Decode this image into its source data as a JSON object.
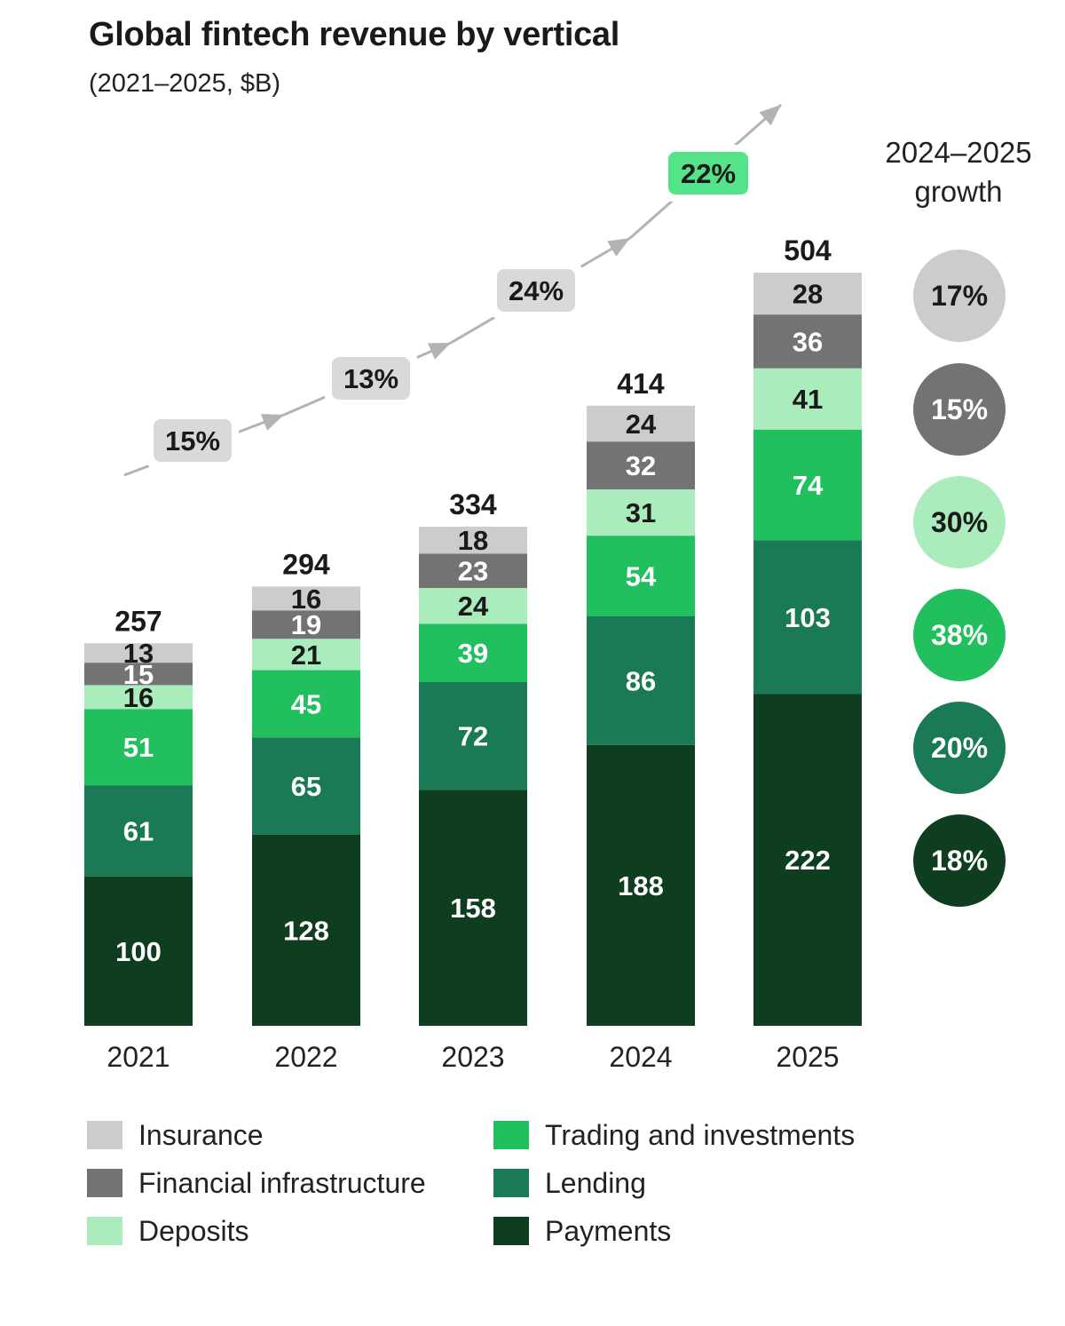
{
  "title": "Global fintech revenue by vertical",
  "subtitle": "(2021–2025, $B)",
  "growth_header": {
    "line1": "2024–2025",
    "line2": "growth"
  },
  "chart_data": {
    "type": "bar",
    "stacked": true,
    "categories": [
      "2021",
      "2022",
      "2023",
      "2024",
      "2025"
    ],
    "totals": [
      257,
      294,
      334,
      414,
      504
    ],
    "yoy_growth": [
      "15%",
      "13%",
      "24%",
      "22%"
    ],
    "series": [
      {
        "name": "Payments",
        "color": "#0e3d1f",
        "values": [
          100,
          128,
          158,
          188,
          222
        ],
        "growth": "18%"
      },
      {
        "name": "Lending",
        "color": "#1a7a55",
        "values": [
          61,
          65,
          72,
          86,
          103
        ],
        "growth": "20%"
      },
      {
        "name": "Trading and investments",
        "color": "#21bf5e",
        "values": [
          51,
          45,
          39,
          54,
          74
        ],
        "growth": "38%"
      },
      {
        "name": "Deposits",
        "color": "#aaecbb",
        "values": [
          16,
          21,
          24,
          31,
          41
        ],
        "growth": "30%"
      },
      {
        "name": "Financial infrastructure",
        "color": "#737373",
        "values": [
          15,
          19,
          23,
          32,
          36
        ],
        "growth": "15%"
      },
      {
        "name": "Insurance",
        "color": "#cccccc",
        "values": [
          13,
          16,
          18,
          24,
          28
        ],
        "growth": "17%"
      }
    ]
  },
  "legend": [
    {
      "label": "Insurance",
      "color": "#cccccc"
    },
    {
      "label": "Financial infrastructure",
      "color": "#737373"
    },
    {
      "label": "Deposits",
      "color": "#aaecbb"
    },
    {
      "label": "Trading and investments",
      "color": "#21bf5e"
    },
    {
      "label": "Lending",
      "color": "#1a7a55"
    },
    {
      "label": "Payments",
      "color": "#0e3d1f"
    }
  ]
}
